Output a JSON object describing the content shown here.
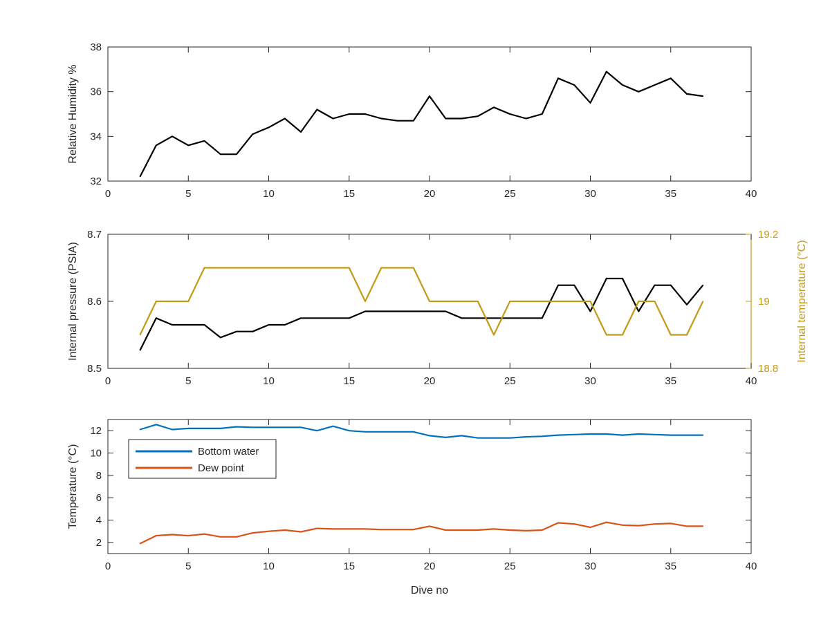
{
  "chart_data": [
    {
      "type": "line",
      "xlabel": "",
      "ylabel": "Relative Humidity %",
      "xlim": [
        0,
        40
      ],
      "ylim": [
        32,
        38
      ],
      "xticks": [
        0,
        5,
        10,
        15,
        20,
        25,
        30,
        35,
        40
      ],
      "yticks": [
        32,
        34,
        36,
        38
      ],
      "series": [
        {
          "color": "#000000",
          "x": [
            2,
            3,
            4,
            5,
            6,
            7,
            8,
            9,
            10,
            11,
            12,
            13,
            14,
            15,
            16,
            17,
            18,
            19,
            20,
            21,
            22,
            23,
            24,
            25,
            26,
            27,
            28,
            29,
            30,
            31,
            32,
            33,
            34,
            35,
            36,
            37
          ],
          "y": [
            32.2,
            33.6,
            34.0,
            33.6,
            33.8,
            33.2,
            33.2,
            34.1,
            34.4,
            34.8,
            34.2,
            35.2,
            34.8,
            35.0,
            35.0,
            34.8,
            34.7,
            34.7,
            35.8,
            34.8,
            34.8,
            34.9,
            35.3,
            35.0,
            34.8,
            35.0,
            36.6,
            36.3,
            35.5,
            36.9,
            36.3,
            36.0,
            36.3,
            36.6,
            35.9,
            35.8
          ]
        }
      ]
    },
    {
      "type": "line",
      "xlabel": "",
      "ylabel": "Internal pressure (PSIA)",
      "y2label": "Internal temperature (°C)",
      "xlim": [
        0,
        40
      ],
      "ylim": [
        8.5,
        8.7
      ],
      "y2lim": [
        18.8,
        19.2
      ],
      "xticks": [
        0,
        5,
        10,
        15,
        20,
        25,
        30,
        35,
        40
      ],
      "yticks": [
        "8.5",
        "8.6",
        "8.7"
      ],
      "y2ticks": [
        "18.8",
        "19",
        "19.2"
      ],
      "series": [
        {
          "axis": "left",
          "color": "#000000",
          "x": [
            2,
            3,
            4,
            5,
            6,
            7,
            8,
            9,
            10,
            11,
            12,
            13,
            14,
            15,
            16,
            17,
            18,
            19,
            20,
            21,
            22,
            23,
            24,
            25,
            26,
            27,
            28,
            29,
            30,
            31,
            32,
            33,
            34,
            35,
            36,
            37
          ],
          "y": [
            8.527,
            8.575,
            8.565,
            8.565,
            8.565,
            8.546,
            8.555,
            8.555,
            8.565,
            8.565,
            8.575,
            8.575,
            8.575,
            8.575,
            8.585,
            8.585,
            8.585,
            8.585,
            8.585,
            8.585,
            8.575,
            8.575,
            8.575,
            8.575,
            8.575,
            8.575,
            8.624,
            8.624,
            8.585,
            8.634,
            8.634,
            8.585,
            8.624,
            8.624,
            8.595,
            8.624
          ]
        },
        {
          "axis": "right",
          "color": "#C49A14",
          "x": [
            2,
            3,
            4,
            5,
            6,
            7,
            8,
            9,
            10,
            11,
            12,
            13,
            14,
            15,
            16,
            17,
            18,
            19,
            20,
            21,
            22,
            23,
            24,
            25,
            26,
            27,
            28,
            29,
            30,
            31,
            32,
            33,
            34,
            35,
            36,
            37
          ],
          "y": [
            18.9,
            19.0,
            19.0,
            19.0,
            19.1,
            19.1,
            19.1,
            19.1,
            19.1,
            19.1,
            19.1,
            19.1,
            19.1,
            19.1,
            19.0,
            19.1,
            19.1,
            19.1,
            19.0,
            19.0,
            19.0,
            19.0,
            18.9,
            19.0,
            19.0,
            19.0,
            19.0,
            19.0,
            19.0,
            18.9,
            18.9,
            19.0,
            19.0,
            18.9,
            18.9,
            19.0
          ]
        }
      ]
    },
    {
      "type": "line",
      "xlabel": "Dive no",
      "ylabel": "Temperature (°C)",
      "xlim": [
        0,
        40
      ],
      "ylim": [
        1,
        13
      ],
      "xticks": [
        0,
        5,
        10,
        15,
        20,
        25,
        30,
        35,
        40
      ],
      "yticks": [
        2,
        4,
        6,
        8,
        10,
        12
      ],
      "legend": "top-left",
      "series": [
        {
          "name": "Bottom water",
          "color": "#0072BD",
          "x": [
            2,
            3,
            4,
            5,
            6,
            7,
            8,
            9,
            10,
            11,
            12,
            13,
            14,
            15,
            16,
            17,
            18,
            19,
            20,
            21,
            22,
            23,
            24,
            25,
            26,
            27,
            28,
            29,
            30,
            31,
            32,
            33,
            34,
            35,
            36,
            37
          ],
          "y": [
            12.1,
            12.55,
            12.1,
            12.2,
            12.2,
            12.2,
            12.35,
            12.3,
            12.3,
            12.3,
            12.3,
            12.0,
            12.4,
            12.0,
            11.9,
            11.9,
            11.9,
            11.9,
            11.55,
            11.4,
            11.55,
            11.35,
            11.35,
            11.35,
            11.45,
            11.5,
            11.6,
            11.65,
            11.7,
            11.7,
            11.6,
            11.7,
            11.65,
            11.6,
            11.6,
            11.6
          ]
        },
        {
          "name": "Dew point",
          "color": "#D95319",
          "x": [
            2,
            3,
            4,
            5,
            6,
            7,
            8,
            9,
            10,
            11,
            12,
            13,
            14,
            15,
            16,
            17,
            18,
            19,
            20,
            21,
            22,
            23,
            24,
            25,
            26,
            27,
            28,
            29,
            30,
            31,
            32,
            33,
            34,
            35,
            36,
            37
          ],
          "y": [
            1.9,
            2.6,
            2.7,
            2.6,
            2.75,
            2.5,
            2.5,
            2.85,
            3.0,
            3.1,
            2.95,
            3.25,
            3.2,
            3.2,
            3.2,
            3.15,
            3.15,
            3.15,
            3.45,
            3.1,
            3.1,
            3.1,
            3.2,
            3.1,
            3.05,
            3.1,
            3.75,
            3.65,
            3.35,
            3.8,
            3.55,
            3.5,
            3.65,
            3.7,
            3.45,
            3.45
          ]
        }
      ]
    }
  ]
}
